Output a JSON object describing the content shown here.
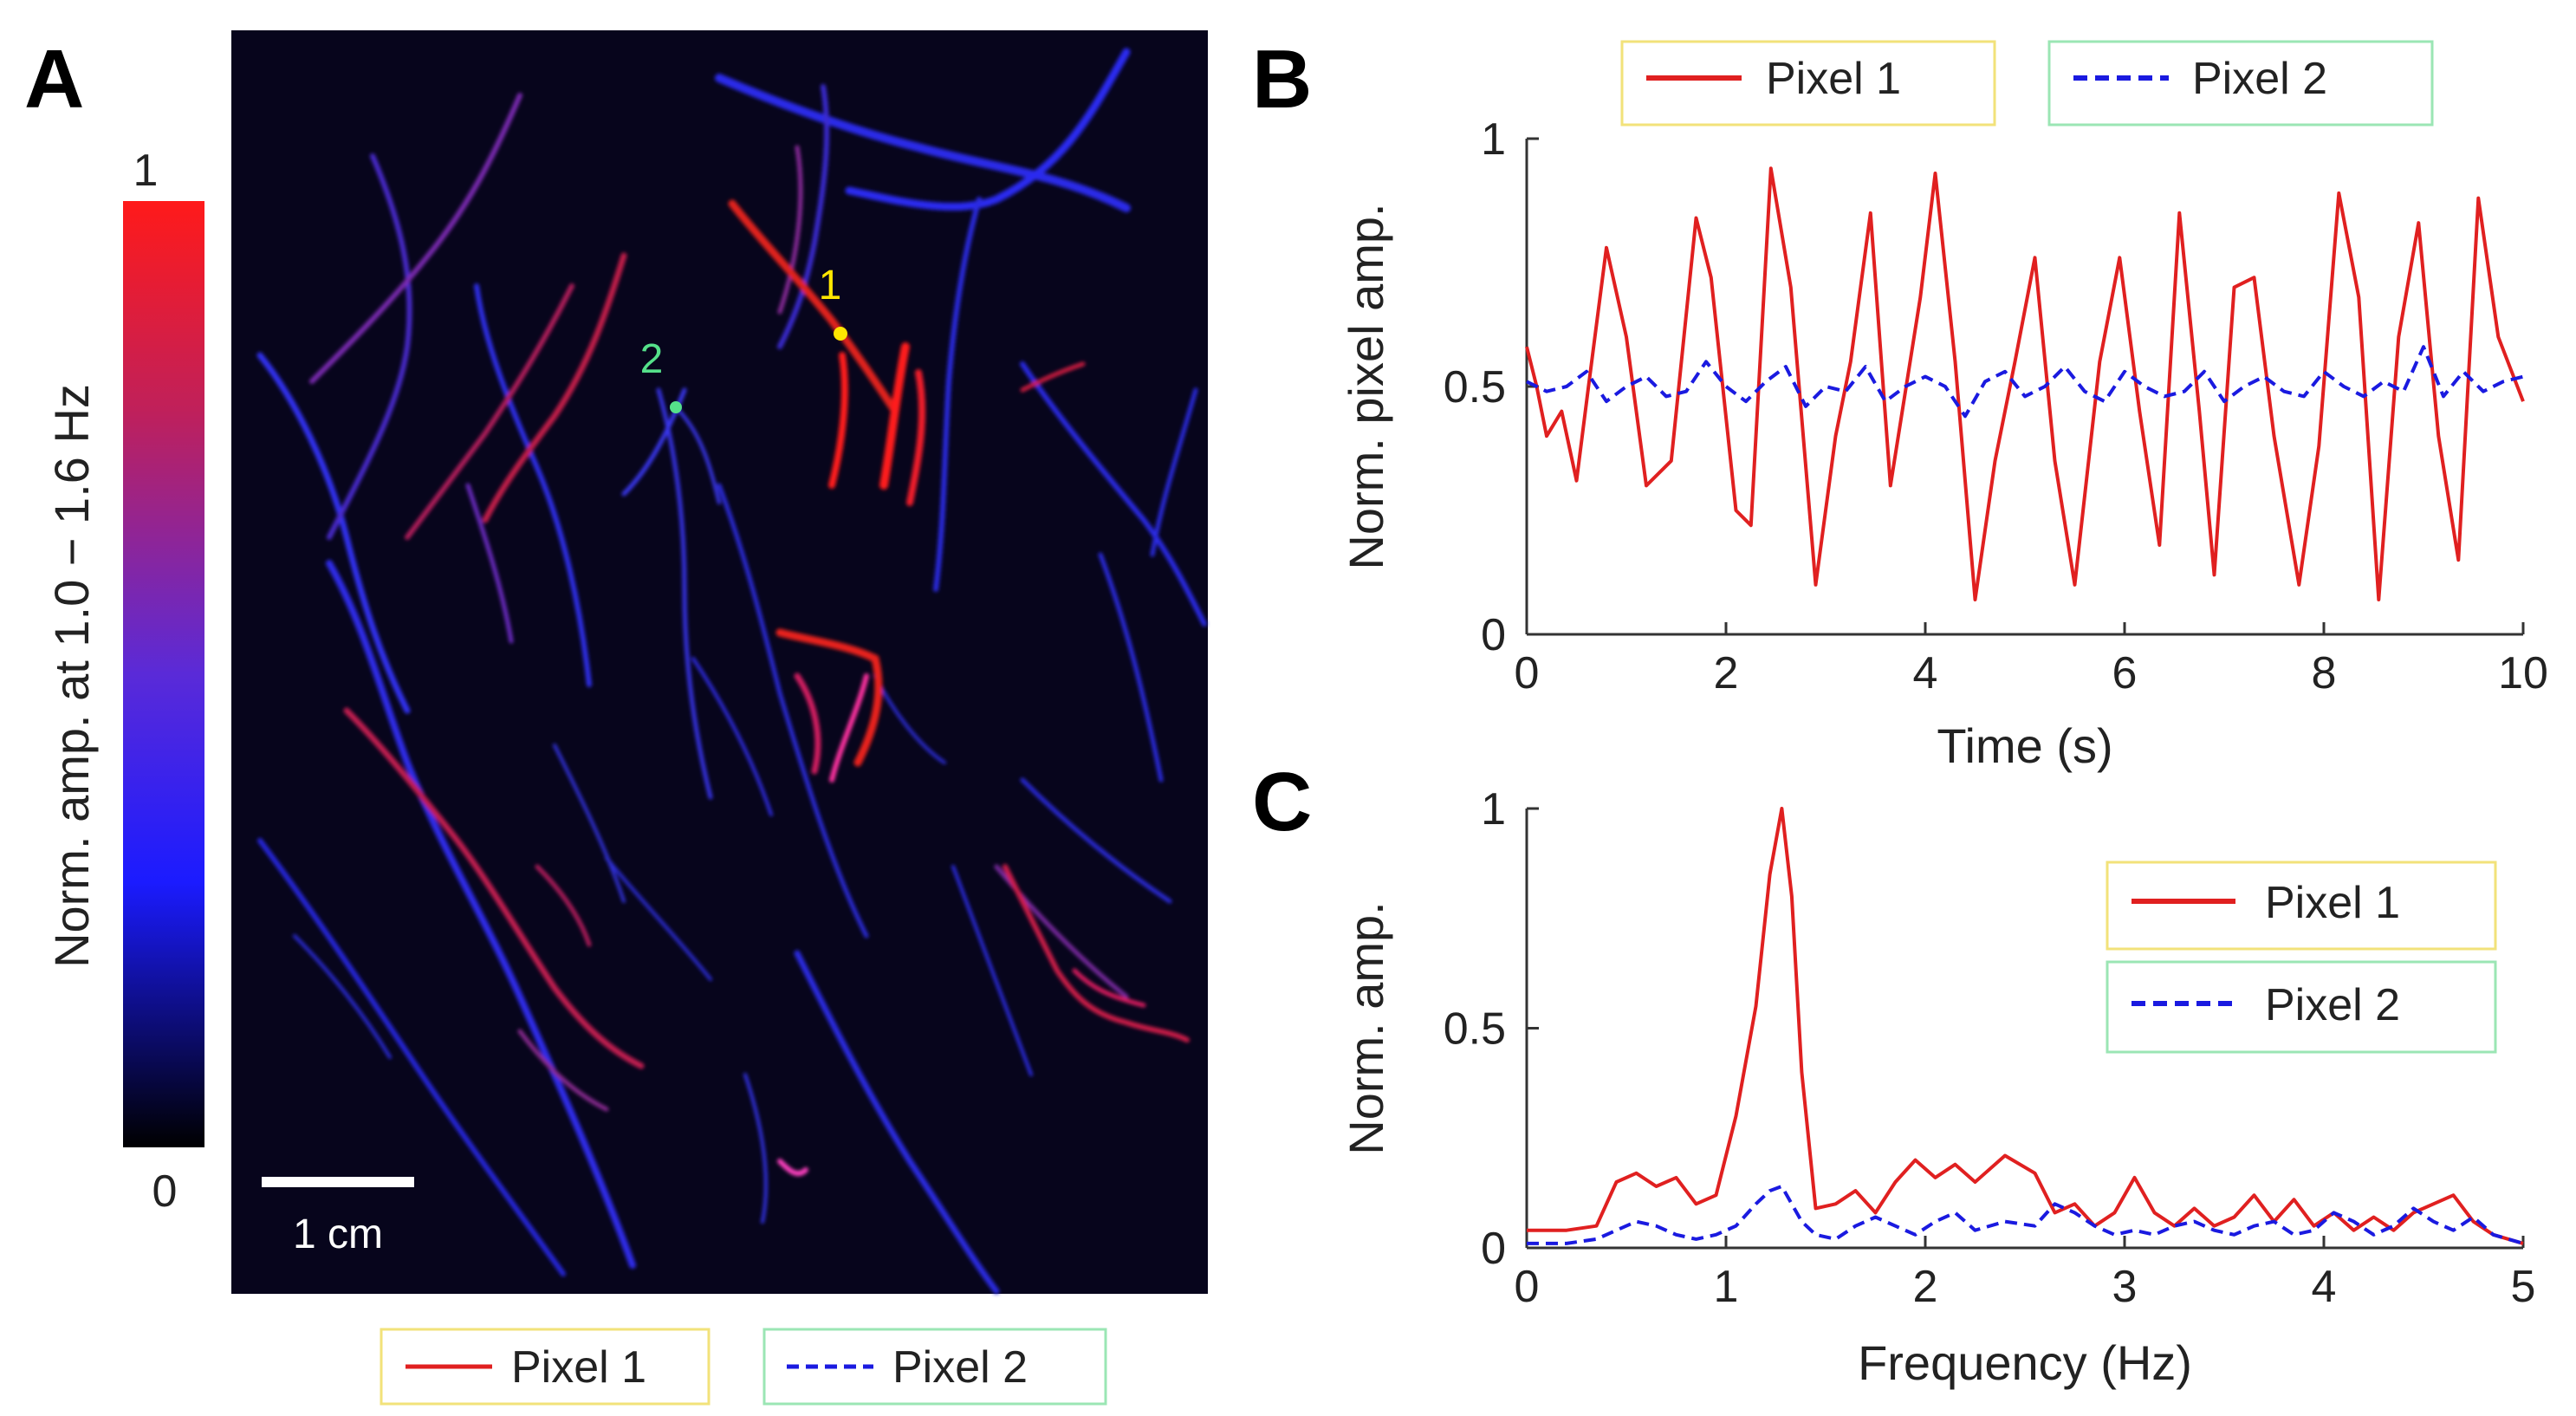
{
  "panels": {
    "a_label": "A",
    "b_label": "B",
    "c_label": "C"
  },
  "map": {
    "point1_label": "1",
    "point2_label": "2",
    "point1_color": "#ffe600",
    "point2_color": "#55e08a",
    "scale_bar_label": "1 cm",
    "background_color": "#07051c"
  },
  "colorbar": {
    "title": "Norm. amp. at 1.0 − 1.6 Hz",
    "max_label": "1",
    "min_label": "0",
    "colors": [
      "#000000",
      "#1b1bff",
      "#5a2ad8",
      "#c0205a",
      "#ff1a1a"
    ]
  },
  "legends": {
    "series1": "Pixel 1",
    "series2": "Pixel 2",
    "series1_color": "#e02020",
    "series2_color": "#1a1ae0",
    "box1_border": "#f2e27a",
    "box2_border": "#9be6b4"
  },
  "chart_data": [
    {
      "id": "time",
      "type": "line",
      "xlabel": "Time (s)",
      "ylabel": "Norm. pixel amp.",
      "xlim": [
        0,
        10
      ],
      "ylim": [
        0,
        1
      ],
      "xticks": [
        "0",
        "2",
        "4",
        "6",
        "8",
        "10"
      ],
      "yticks": [
        "0",
        "0.5",
        "1"
      ],
      "legend_position": "top",
      "series": [
        {
          "name": "Pixel 1",
          "style": "solid",
          "color": "#e02020",
          "x": [
            0,
            0.1,
            0.2,
            0.35,
            0.5,
            0.62,
            0.8,
            1.0,
            1.2,
            1.45,
            1.7,
            1.85,
            2.1,
            2.25,
            2.45,
            2.65,
            2.9,
            3.1,
            3.25,
            3.45,
            3.65,
            3.95,
            4.1,
            4.3,
            4.5,
            4.7,
            4.9,
            5.1,
            5.3,
            5.5,
            5.75,
            5.95,
            6.15,
            6.35,
            6.55,
            6.75,
            6.9,
            7.1,
            7.3,
            7.5,
            7.75,
            7.95,
            8.15,
            8.35,
            8.55,
            8.75,
            8.95,
            9.15,
            9.35,
            9.55,
            9.75,
            10
          ],
          "y": [
            0.58,
            0.5,
            0.4,
            0.45,
            0.31,
            0.5,
            0.78,
            0.6,
            0.3,
            0.35,
            0.84,
            0.72,
            0.25,
            0.22,
            0.94,
            0.7,
            0.1,
            0.4,
            0.55,
            0.85,
            0.3,
            0.68,
            0.93,
            0.55,
            0.07,
            0.35,
            0.55,
            0.76,
            0.35,
            0.1,
            0.55,
            0.76,
            0.45,
            0.18,
            0.85,
            0.45,
            0.12,
            0.7,
            0.72,
            0.4,
            0.1,
            0.38,
            0.89,
            0.68,
            0.07,
            0.6,
            0.83,
            0.4,
            0.15,
            0.88,
            0.6,
            0.47
          ]
        },
        {
          "name": "Pixel 2",
          "style": "dashed",
          "color": "#1a1ae0",
          "x": [
            0,
            0.2,
            0.4,
            0.6,
            0.8,
            1.0,
            1.2,
            1.4,
            1.6,
            1.8,
            2.0,
            2.2,
            2.4,
            2.6,
            2.8,
            3.0,
            3.2,
            3.4,
            3.6,
            3.8,
            4.0,
            4.2,
            4.4,
            4.6,
            4.8,
            5.0,
            5.2,
            5.4,
            5.6,
            5.8,
            6.0,
            6.2,
            6.4,
            6.6,
            6.8,
            7.0,
            7.2,
            7.4,
            7.6,
            7.8,
            8.0,
            8.2,
            8.4,
            8.6,
            8.8,
            9.0,
            9.2,
            9.4,
            9.6,
            9.8,
            10.0
          ],
          "y": [
            0.51,
            0.49,
            0.5,
            0.53,
            0.47,
            0.5,
            0.52,
            0.48,
            0.49,
            0.55,
            0.5,
            0.47,
            0.51,
            0.54,
            0.46,
            0.5,
            0.49,
            0.54,
            0.47,
            0.5,
            0.52,
            0.5,
            0.44,
            0.51,
            0.53,
            0.48,
            0.5,
            0.54,
            0.49,
            0.47,
            0.53,
            0.5,
            0.48,
            0.49,
            0.53,
            0.47,
            0.5,
            0.52,
            0.49,
            0.48,
            0.53,
            0.5,
            0.48,
            0.51,
            0.49,
            0.58,
            0.48,
            0.53,
            0.49,
            0.51,
            0.52
          ]
        }
      ]
    },
    {
      "id": "freq",
      "type": "line",
      "xlabel": "Frequency (Hz)",
      "ylabel": "Norm. amp.",
      "xlim": [
        0,
        5
      ],
      "ylim": [
        0,
        1
      ],
      "xticks": [
        "0",
        "1",
        "2",
        "3",
        "4",
        "5"
      ],
      "yticks": [
        "0",
        "0.5",
        "1"
      ],
      "legend_position": "top-right",
      "series": [
        {
          "name": "Pixel 1",
          "style": "solid",
          "color": "#e02020",
          "x": [
            0,
            0.2,
            0.35,
            0.45,
            0.55,
            0.65,
            0.75,
            0.85,
            0.95,
            1.05,
            1.15,
            1.22,
            1.28,
            1.33,
            1.38,
            1.45,
            1.55,
            1.65,
            1.75,
            1.85,
            1.95,
            2.05,
            2.15,
            2.25,
            2.4,
            2.55,
            2.65,
            2.75,
            2.85,
            2.95,
            3.05,
            3.15,
            3.25,
            3.35,
            3.45,
            3.55,
            3.65,
            3.75,
            3.85,
            3.95,
            4.05,
            4.15,
            4.25,
            4.35,
            4.45,
            4.55,
            4.65,
            4.75,
            4.85,
            5.0
          ],
          "y": [
            0.04,
            0.04,
            0.05,
            0.15,
            0.17,
            0.14,
            0.16,
            0.1,
            0.12,
            0.3,
            0.55,
            0.85,
            1.0,
            0.8,
            0.4,
            0.09,
            0.1,
            0.13,
            0.08,
            0.15,
            0.2,
            0.16,
            0.19,
            0.15,
            0.21,
            0.17,
            0.08,
            0.1,
            0.05,
            0.08,
            0.16,
            0.08,
            0.05,
            0.09,
            0.05,
            0.07,
            0.12,
            0.06,
            0.11,
            0.05,
            0.08,
            0.04,
            0.07,
            0.04,
            0.08,
            0.1,
            0.12,
            0.06,
            0.03,
            0.01
          ]
        },
        {
          "name": "Pixel 2",
          "style": "dashed",
          "color": "#1a1ae0",
          "x": [
            0,
            0.2,
            0.35,
            0.45,
            0.55,
            0.65,
            0.75,
            0.85,
            0.95,
            1.05,
            1.15,
            1.22,
            1.28,
            1.33,
            1.38,
            1.45,
            1.55,
            1.65,
            1.75,
            1.85,
            1.95,
            2.05,
            2.15,
            2.25,
            2.4,
            2.55,
            2.65,
            2.75,
            2.85,
            2.95,
            3.05,
            3.15,
            3.25,
            3.35,
            3.45,
            3.55,
            3.65,
            3.75,
            3.85,
            3.95,
            4.05,
            4.15,
            4.25,
            4.35,
            4.45,
            4.55,
            4.65,
            4.75,
            4.85,
            5.0
          ],
          "y": [
            0.01,
            0.01,
            0.02,
            0.04,
            0.06,
            0.05,
            0.03,
            0.02,
            0.03,
            0.05,
            0.1,
            0.13,
            0.14,
            0.1,
            0.06,
            0.03,
            0.02,
            0.05,
            0.07,
            0.05,
            0.03,
            0.06,
            0.08,
            0.04,
            0.06,
            0.05,
            0.1,
            0.08,
            0.05,
            0.03,
            0.04,
            0.03,
            0.05,
            0.06,
            0.04,
            0.03,
            0.05,
            0.06,
            0.03,
            0.04,
            0.08,
            0.06,
            0.03,
            0.05,
            0.09,
            0.06,
            0.04,
            0.07,
            0.03,
            0.01
          ]
        }
      ]
    }
  ]
}
